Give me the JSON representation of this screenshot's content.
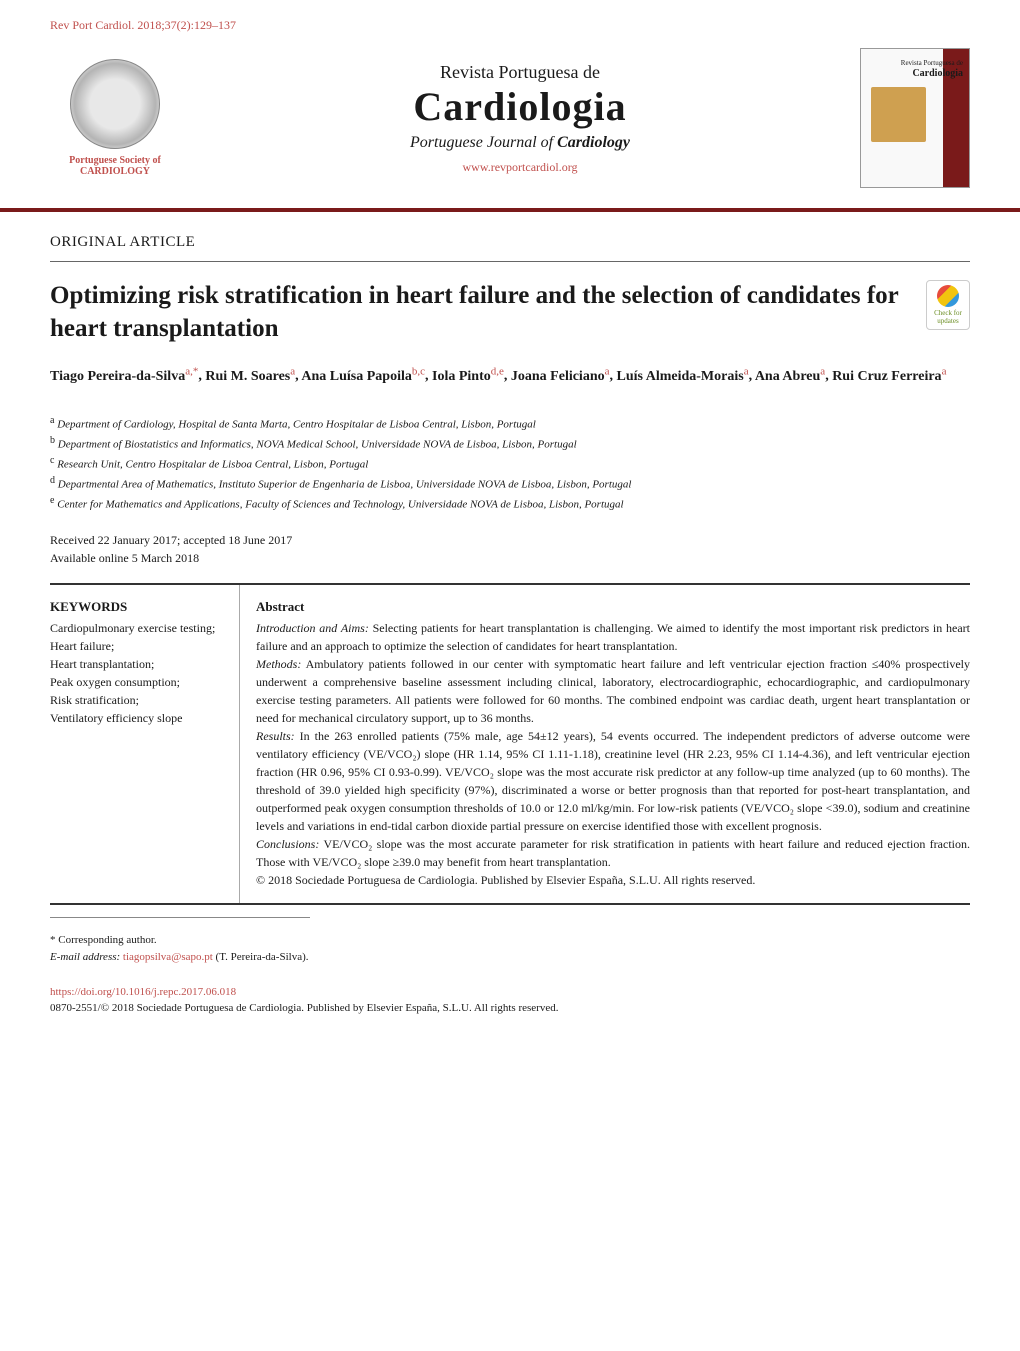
{
  "header": {
    "citation": "Rev Port Cardiol. 2018;37(2):129–137",
    "citation_link_color": "#c0504d"
  },
  "journal": {
    "society_line1": "Portuguese Society of",
    "society_line2": "CARDIOLOGY",
    "super": "Revista Portuguesa de",
    "main": "Cardiologia",
    "sub_prefix": "Portuguese Journal of ",
    "sub_bold": "Cardiology",
    "url": "www.revportcardiol.org",
    "cover_mini_super": "Revista Portuguesa de",
    "cover_mini_title": "Cardiologia"
  },
  "article": {
    "type": "ORIGINAL ARTICLE",
    "title": "Optimizing risk stratification in heart failure and the selection of candidates for heart transplantation",
    "crossmark": "Check for updates"
  },
  "authors_line": {
    "names": [
      {
        "name": "Tiago Pereira-da-Silva",
        "aff": "a,*"
      },
      {
        "name": "Rui M. Soares",
        "aff": "a"
      },
      {
        "name": "Ana Luísa Papoila",
        "aff": "b,c"
      },
      {
        "name": "Iola Pinto",
        "aff": "d,e"
      },
      {
        "name": "Joana Feliciano",
        "aff": "a"
      },
      {
        "name": "Luís Almeida-Morais",
        "aff": "a"
      },
      {
        "name": "Ana Abreu",
        "aff": "a"
      },
      {
        "name": "Rui Cruz Ferreira",
        "aff": "a"
      }
    ]
  },
  "affiliations": {
    "a": "Department of Cardiology, Hospital de Santa Marta, Centro Hospitalar de Lisboa Central, Lisbon, Portugal",
    "b": "Department of Biostatistics and Informatics, NOVA Medical School, Universidade NOVA de Lisboa, Lisbon, Portugal",
    "c": "Research Unit, Centro Hospitalar de Lisboa Central, Lisbon, Portugal",
    "d": "Departmental Area of Mathematics, Instituto Superior de Engenharia de Lisboa, Universidade NOVA de Lisboa, Lisbon, Portugal",
    "e": "Center for Mathematics and Applications, Faculty of Sciences and Technology, Universidade NOVA de Lisboa, Lisbon, Portugal"
  },
  "dates": {
    "received": "Received 22 January 2017; accepted 18 June 2017",
    "online": "Available online 5 March 2018"
  },
  "keywords": {
    "heading": "KEYWORDS",
    "list": "Cardiopulmonary exercise testing;\nHeart failure;\nHeart transplantation;\nPeak oxygen consumption;\nRisk stratification;\nVentilatory efficiency slope"
  },
  "abstract": {
    "heading": "Abstract",
    "intro_label": "Introduction and Aims:",
    "intro": " Selecting patients for heart transplantation is challenging. We aimed to identify the most important risk predictors in heart failure and an approach to optimize the selection of candidates for heart transplantation.",
    "methods_label": "Methods:",
    "methods": " Ambulatory patients followed in our center with symptomatic heart failure and left ventricular ejection fraction ≤40% prospectively underwent a comprehensive baseline assessment including clinical, laboratory, electrocardiographic, echocardiographic, and cardiopulmonary exercise testing parameters. All patients were followed for 60 months. The combined endpoint was cardiac death, urgent heart transplantation or need for mechanical circulatory support, up to 36 months.",
    "results_label": "Results:",
    "results": " In the 263 enrolled patients (75% male, age 54±12 years), 54 events occurred. The independent predictors of adverse outcome were ventilatory efficiency (VE/VCO₂) slope (HR 1.14, 95% CI 1.11-1.18), creatinine level (HR 2.23, 95% CI 1.14-4.36), and left ventricular ejection fraction (HR 0.96, 95% CI 0.93-0.99). VE/VCO₂ slope was the most accurate risk predictor at any follow-up time analyzed (up to 60 months). The threshold of 39.0 yielded high specificity (97%), discriminated a worse or better prognosis than that reported for post-heart transplantation, and outperformed peak oxygen consumption thresholds of 10.0 or 12.0 ml/kg/min. For low-risk patients (VE/VCO₂ slope <39.0), sodium and creatinine levels and variations in end-tidal carbon dioxide partial pressure on exercise identified those with excellent prognosis.",
    "conclusions_label": "Conclusions:",
    "conclusions": " VE/VCO₂ slope was the most accurate parameter for risk stratification in patients with heart failure and reduced ejection fraction. Those with VE/VCO₂ slope ≥39.0 may benefit from heart transplantation.",
    "copyright": "© 2018 Sociedade Portuguesa de Cardiologia. Published by Elsevier España, S.L.U. All rights reserved."
  },
  "footnote": {
    "corr": "* Corresponding author.",
    "email_label": "E-mail address:",
    "email": "tiagopsilva@sapo.pt",
    "email_suffix": " (T. Pereira-da-Silva)."
  },
  "doi": {
    "url": "https://doi.org/10.1016/j.repc.2017.06.018",
    "issn_line": "0870-2551/© 2018 Sociedade Portuguesa de Cardiologia. Published by Elsevier España, S.L.U. All rights reserved."
  },
  "colors": {
    "accent": "#c0504d",
    "rule": "#7a1a1a",
    "text": "#1a1a1a",
    "border": "#aaaaaa"
  },
  "typography": {
    "body_family": "Georgia, Times New Roman, serif",
    "title_size_pt": 25,
    "journal_main_size_pt": 40,
    "abstract_size_pt": 12
  }
}
